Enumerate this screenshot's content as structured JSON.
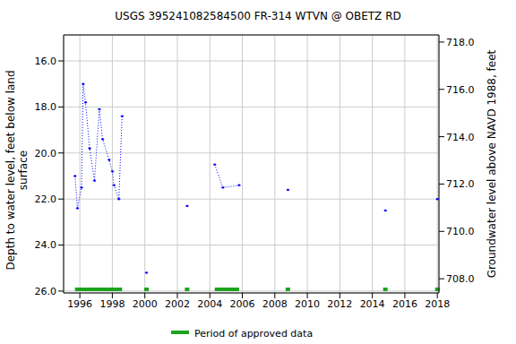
{
  "chart_data": {
    "type": "line",
    "title": "USGS 395241082584500 FR-314 WTVN @ OBETZ RD",
    "x_label": "",
    "y_label": "Depth to water level, feet below land surface",
    "y2_label": "Groundwater level above NAVD 1988, feet",
    "x": [
      1995.7,
      1995.85,
      1996.1,
      1996.2,
      1996.35,
      1996.6,
      1996.9,
      1997.2,
      1997.4,
      1997.8,
      1998.0,
      1998.1,
      1998.4,
      1998.6,
      1999.3,
      2000.1,
      2001.3,
      2002.6,
      2003.5,
      2004.3,
      2004.8,
      2005.8,
      2007.3,
      2008.8,
      2011.8,
      2014.8,
      2016.4,
      2018.0
    ],
    "series": [
      {
        "name": "Depth to water level",
        "color": "#0000ff",
        "marker": "dot",
        "line_style": "dotted",
        "values": [
          21.0,
          22.4,
          21.5,
          17.0,
          17.8,
          19.8,
          21.2,
          18.1,
          19.4,
          20.3,
          20.8,
          21.4,
          22.0,
          18.4,
          null,
          25.2,
          null,
          22.3,
          null,
          20.5,
          21.5,
          21.4,
          null,
          21.6,
          null,
          22.5,
          null,
          22.0
        ]
      }
    ],
    "approved_periods": {
      "name": "Period of approved data",
      "color": "#1ea31e",
      "ranges": [
        [
          1995.7,
          1998.6
        ],
        [
          2000.1,
          2000.1
        ],
        [
          2002.6,
          2002.6
        ],
        [
          2004.3,
          2005.8
        ],
        [
          2008.8,
          2008.8
        ],
        [
          2014.8,
          2014.8
        ],
        [
          2018.0,
          2018.0
        ]
      ]
    },
    "xlim": [
      1995.0,
      2018.1
    ],
    "xticks": [
      1996,
      1998,
      2000,
      2002,
      2004,
      2006,
      2008,
      2010,
      2012,
      2014,
      2016,
      2018
    ],
    "ylim": [
      14.87,
      26.08
    ],
    "yticks": [
      {
        "value": 16,
        "label": "16.0"
      },
      {
        "value": 18,
        "label": "18.0"
      },
      {
        "value": 20,
        "label": "20.0"
      },
      {
        "value": 22,
        "label": "22.0"
      },
      {
        "value": 24,
        "label": "24.0"
      },
      {
        "value": 26,
        "label": "26.0"
      }
    ],
    "y2lim": [
      707.4,
      718.3
    ],
    "y2ticks": [
      {
        "value": 708,
        "label": "708.0"
      },
      {
        "value": 710,
        "label": "710.0"
      },
      {
        "value": 712,
        "label": "712.0"
      },
      {
        "value": 714,
        "label": "714.0"
      },
      {
        "value": 716,
        "label": "716.0"
      },
      {
        "value": 718,
        "label": "718.0"
      }
    ],
    "grid": true,
    "legend": "bottom"
  }
}
